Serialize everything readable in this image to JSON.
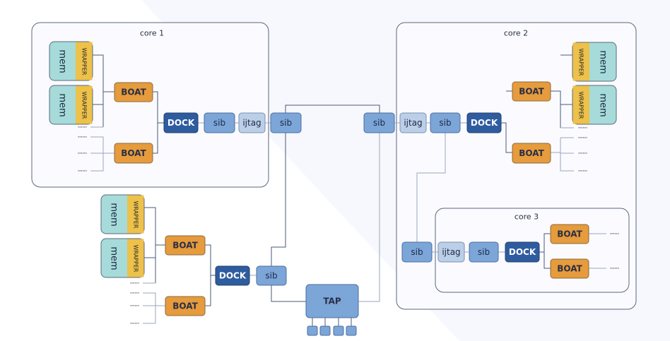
{
  "labels": {
    "core1": "core 1",
    "core2": "core 2",
    "core3": "core 3",
    "mem": "mem",
    "wrapper": "WRAPPER",
    "boat": "BOAT",
    "dock": "DOCK",
    "sib": "sib",
    "ijtag": "ijtag",
    "tap": "TAP",
    "dots": "......"
  },
  "colors": {
    "mem": "#a6dbd9",
    "wrapper": "#edc14a",
    "boat": "#e69b3c",
    "dock": "#2f5c9f",
    "sib": "#7ca5d8",
    "ijtag": "#bccfe8"
  }
}
